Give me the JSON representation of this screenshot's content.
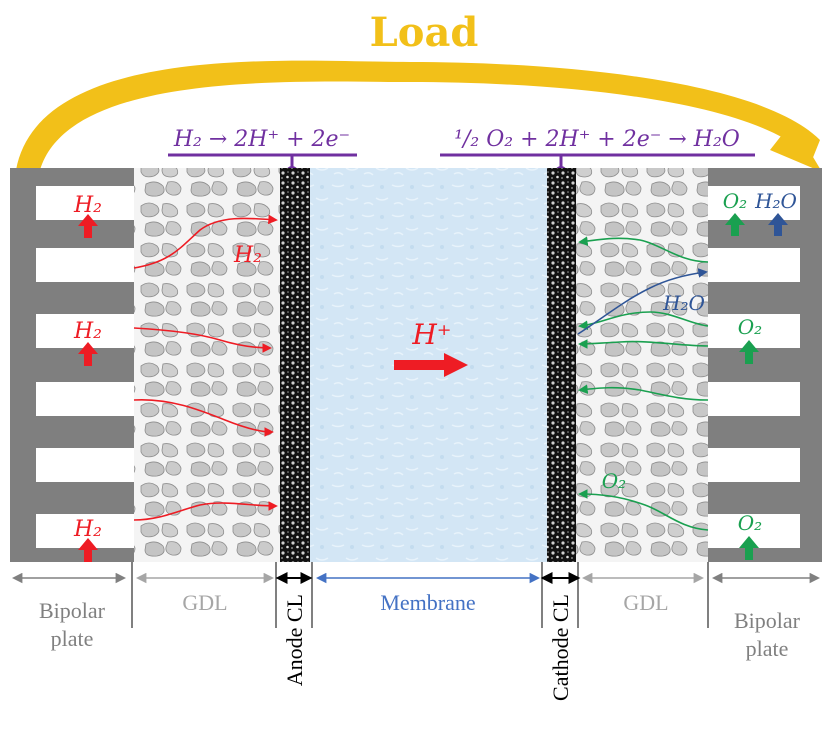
{
  "load": {
    "label": "Load",
    "color": "#f2c019"
  },
  "reactions": {
    "anode": {
      "text": "H₂ → 2H⁺ + 2e⁻",
      "color": "#7030a0"
    },
    "cathode": {
      "text": "¹/₂ O₂ + 2H⁺ + 2e⁻ → H₂O",
      "color": "#7030a0"
    }
  },
  "species": {
    "h2": "H₂",
    "o2": "O₂",
    "h2o": "H₂O",
    "proton": "H⁺"
  },
  "labels": {
    "bipolar_left": [
      "Bipolar",
      "plate"
    ],
    "gdl_left": "GDL",
    "anode_cl": "Anode CL",
    "membrane": "Membrane",
    "cathode_cl": "Cathode CL",
    "gdl_right": "GDL",
    "bipolar_right": [
      "Bipolar",
      "plate"
    ]
  },
  "colors": {
    "hydrogen": "#ee1c24",
    "oxygen": "#1aa050",
    "water": "#2f5597",
    "bipolar": "#808080",
    "gdl": "#a6a6a6",
    "membrane_text": "#4472c4",
    "membrane_fill": "#cfe3f3"
  }
}
